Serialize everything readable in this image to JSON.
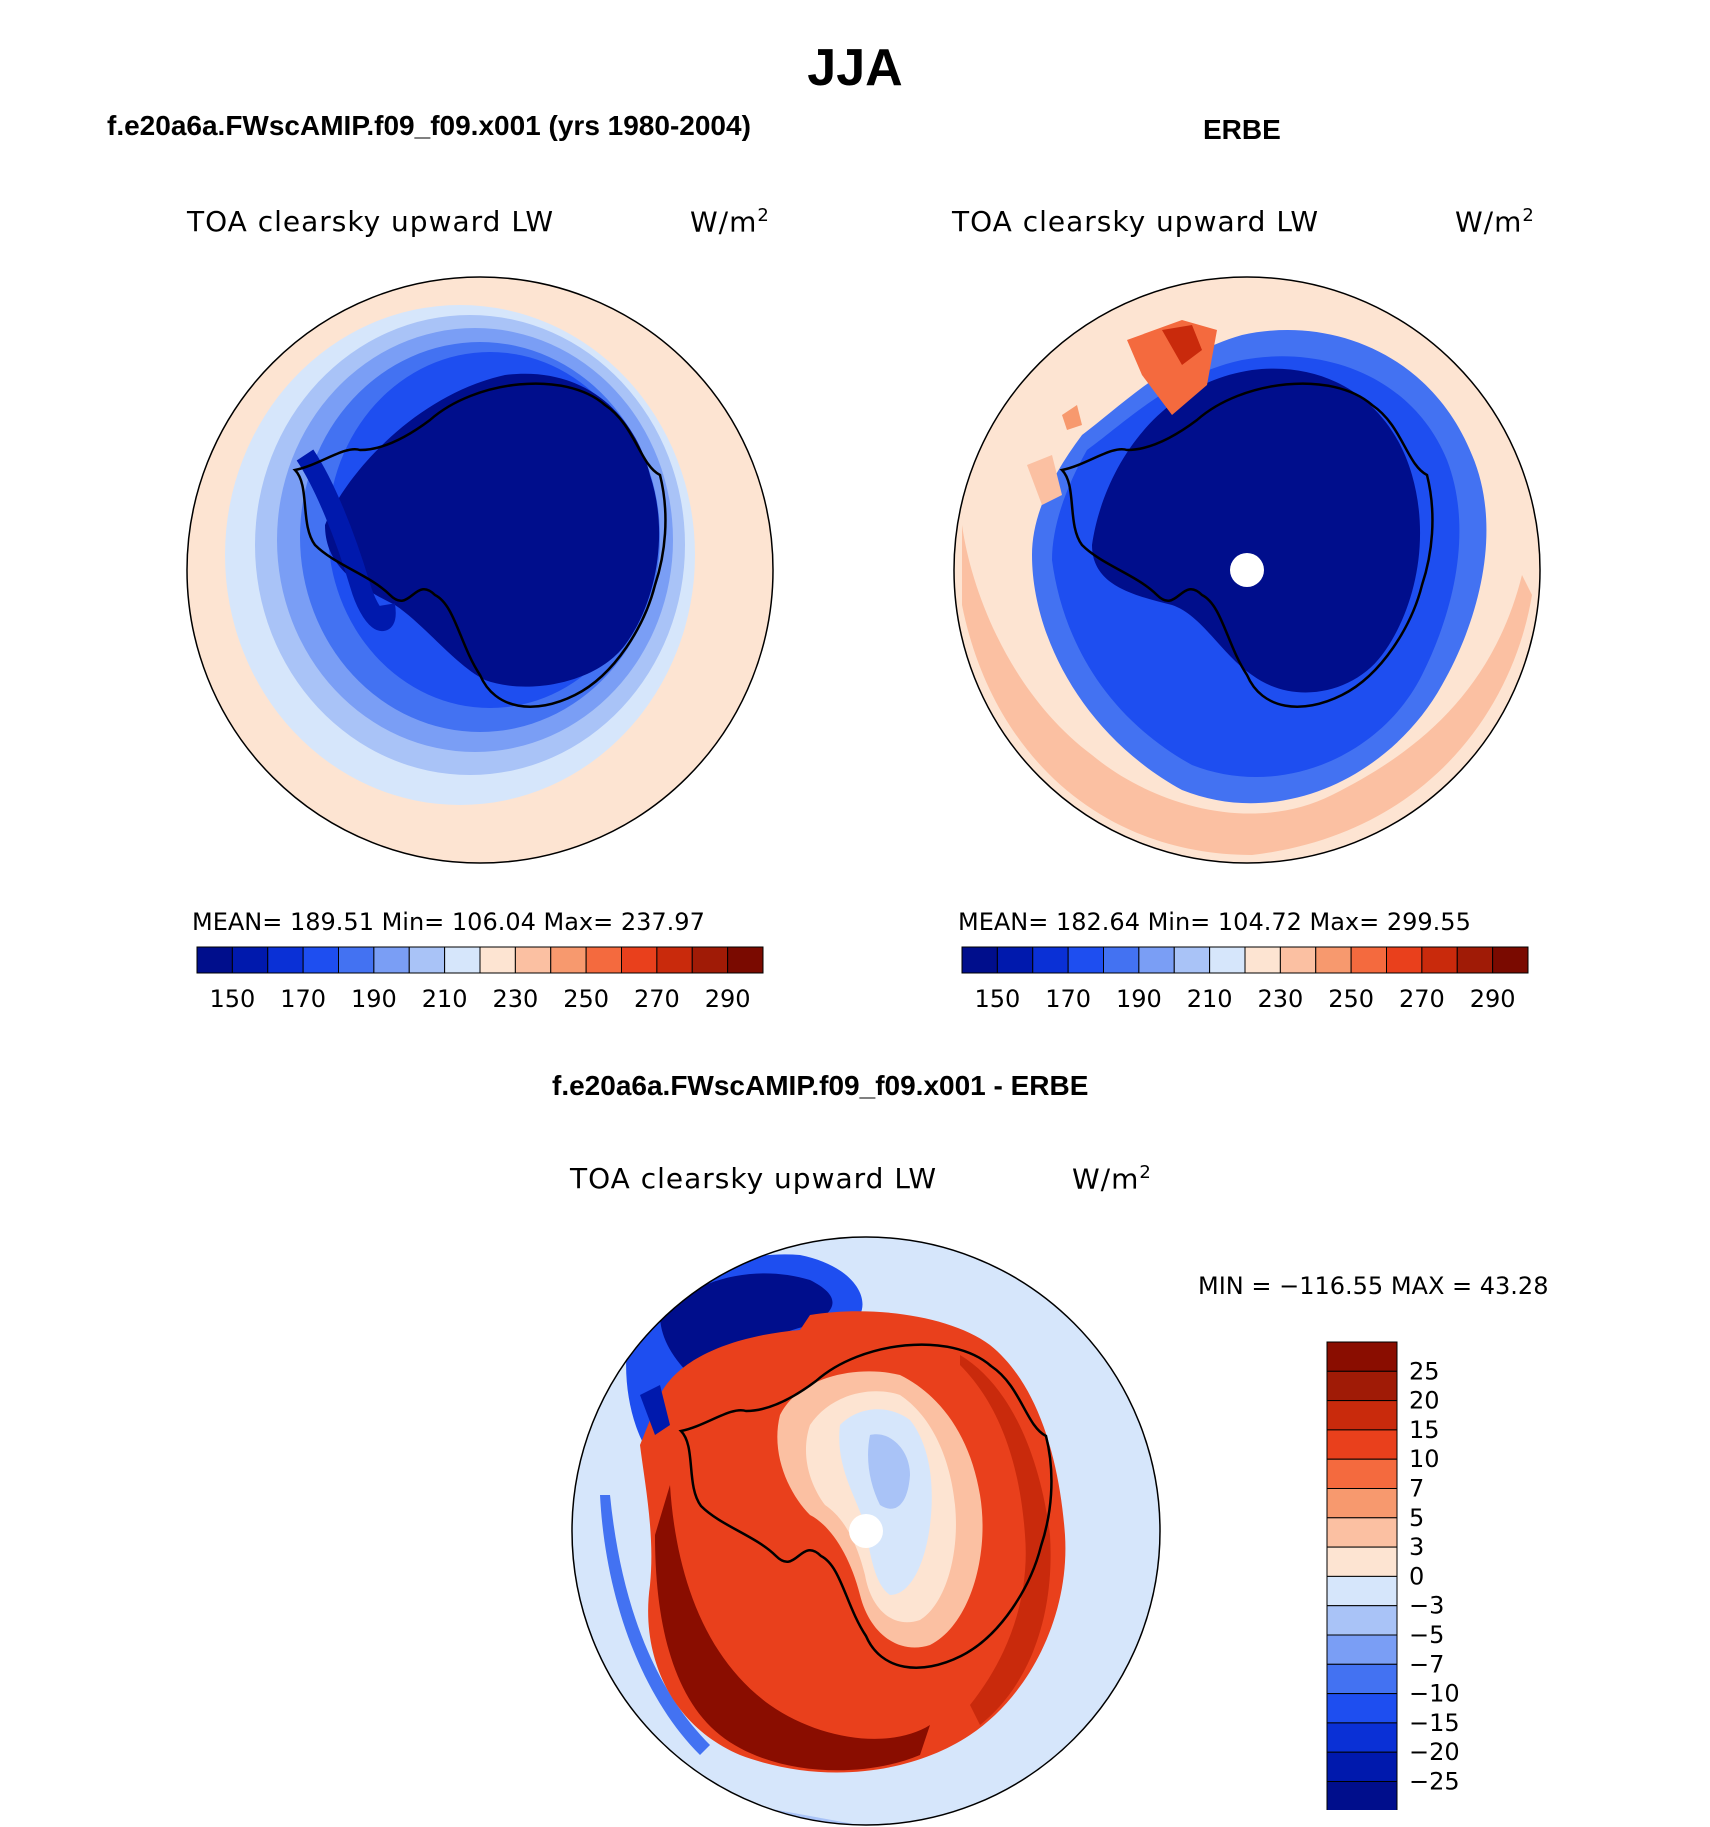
{
  "title": "JJA",
  "colors": {
    "abs": [
      "#000e8c",
      "#0019ad",
      "#0a30d6",
      "#1e4ef0",
      "#4372f2",
      "#7a9ef5",
      "#a9c3f7",
      "#d6e6fb",
      "#fde4d2",
      "#fbc0a2",
      "#f7996e",
      "#f46a3e",
      "#e9401c",
      "#c92a0c",
      "#a01b06",
      "#7a0a00"
    ],
    "diff": [
      "#000e8c",
      "#0019ad",
      "#0a30d6",
      "#1e4ef0",
      "#4372f2",
      "#7a9ef5",
      "#a9c3f7",
      "#d6e6fb",
      "#fde4d2",
      "#fbc0a2",
      "#f7996e",
      "#f46a3e",
      "#e9401c",
      "#c92a0c",
      "#a01b06",
      "#8a0d00"
    ]
  },
  "panels": [
    {
      "title": "f.e20a6a.FWscAMIP.f09_f09.x001 (yrs 1980-2004)",
      "var": "TOA clearsky upward LW",
      "units": "W/m",
      "units_sup": "2",
      "stats": "MEAN= 189.51   Min= 106.04   Max= 237.97",
      "colorbar_labels": [
        "150",
        "170",
        "190",
        "210",
        "230",
        "250",
        "270",
        "290"
      ]
    },
    {
      "title": "ERBE",
      "var": "TOA clearsky upward LW",
      "units": "W/m",
      "units_sup": "2",
      "stats": "MEAN= 182.64   Min= 104.72   Max= 299.55",
      "colorbar_labels": [
        "150",
        "170",
        "190",
        "210",
        "230",
        "250",
        "270",
        "290"
      ]
    },
    {
      "title": "f.e20a6a.FWscAMIP.f09_f09.x001 - ERBE",
      "var": "TOA clearsky upward LW",
      "units": "W/m",
      "units_sup": "2",
      "stats": "MIN = −116.55  MAX =   43.28",
      "colorbar_labels": [
        "25",
        "20",
        "15",
        "10",
        "7",
        "5",
        "3",
        "0",
        "−3",
        "−5",
        "−7",
        "−10",
        "−15",
        "−20",
        "−25"
      ]
    }
  ]
}
